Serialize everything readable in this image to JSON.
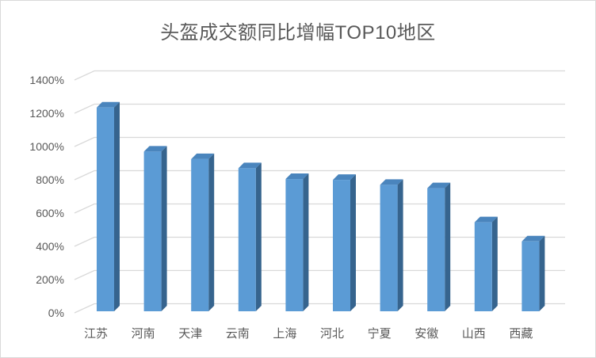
{
  "window": {
    "background": "#ffffff",
    "border_color": "#d9d9d9"
  },
  "chart_data": {
    "type": "bar",
    "variant": "3d-column",
    "title": "头盔成交额同比增幅TOP10地区",
    "categories": [
      "江苏",
      "河南",
      "天津",
      "云南",
      "上海",
      "河北",
      "宁夏",
      "安徽",
      "山西",
      "西藏"
    ],
    "values": [
      1225,
      960,
      915,
      860,
      795,
      790,
      760,
      740,
      535,
      420
    ],
    "unit": "%",
    "xlabel": "",
    "ylabel": "",
    "ylim": [
      0,
      1400
    ],
    "ytick_step": 200,
    "ytick_labels": [
      "0%",
      "200%",
      "400%",
      "600%",
      "800%",
      "1000%",
      "1200%",
      "1400%"
    ],
    "grid": true,
    "legend": "none",
    "colors": {
      "bar_front": "#5B9BD5",
      "bar_side": "#36648E",
      "bar_top": "#4A85BD",
      "gridline": "#D9D9D9",
      "axis_text": "#595959",
      "title_text": "#595959"
    }
  }
}
